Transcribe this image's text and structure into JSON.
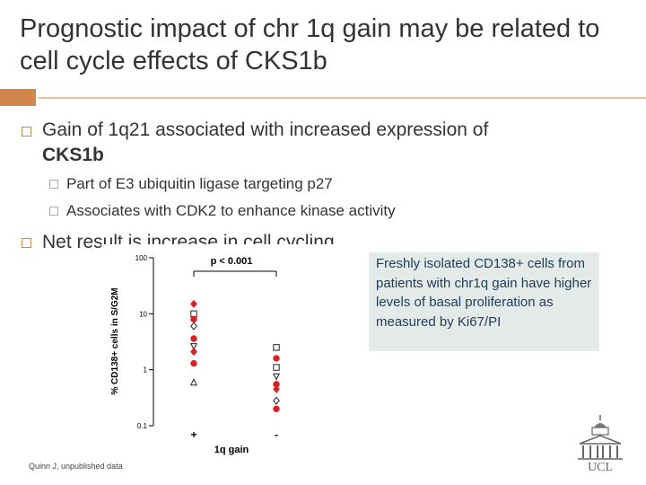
{
  "title": "Prognostic impact of chr 1q gain may be related to cell cycle effects of CKS1b",
  "bullets": {
    "b1_text": "Gain of 1q21 associated with increased expression of",
    "b1_bold": "CKS1b",
    "sub1": "Part of E3 ubiquitin ligase targeting p27",
    "sub2": "Associates with CDK2 to enhance kinase activity",
    "b2": "Net result is increase in cell cycling"
  },
  "chart_data": {
    "type": "scatter",
    "title": "p < 0.001",
    "xlabel": "1q gain",
    "ylabel": "% CD138+ cells in S/G2M",
    "yscale": "log",
    "ylim": [
      0.1,
      100
    ],
    "yticks": [
      "100",
      "10",
      "1",
      "0.1"
    ],
    "categories": [
      "+",
      "-"
    ],
    "points": [
      {
        "x": "+",
        "y": 15,
        "marker": "filled-diamond",
        "color": "#e02020"
      },
      {
        "x": "+",
        "y": 10,
        "marker": "open-square",
        "color": "#222222"
      },
      {
        "x": "+",
        "y": 8,
        "marker": "filled-circle",
        "color": "#e02020"
      },
      {
        "x": "+",
        "y": 6,
        "marker": "open-diamond",
        "color": "#222222"
      },
      {
        "x": "+",
        "y": 3.6,
        "marker": "filled-circle",
        "color": "#e02020"
      },
      {
        "x": "+",
        "y": 2.6,
        "marker": "open-down-triangle",
        "color": "#222222"
      },
      {
        "x": "+",
        "y": 2.1,
        "marker": "filled-diamond",
        "color": "#e02020"
      },
      {
        "x": "+",
        "y": 1.3,
        "marker": "filled-circle",
        "color": "#e02020"
      },
      {
        "x": "+",
        "y": 0.6,
        "marker": "open-triangle",
        "color": "#222222"
      },
      {
        "x": "-",
        "y": 2.5,
        "marker": "open-square",
        "color": "#222222"
      },
      {
        "x": "-",
        "y": 1.6,
        "marker": "filled-circle",
        "color": "#e02020"
      },
      {
        "x": "-",
        "y": 1.1,
        "marker": "open-square",
        "color": "#222222"
      },
      {
        "x": "-",
        "y": 0.75,
        "marker": "open-down-triangle",
        "color": "#222222"
      },
      {
        "x": "-",
        "y": 0.55,
        "marker": "filled-circle",
        "color": "#e02020"
      },
      {
        "x": "-",
        "y": 0.45,
        "marker": "filled-diamond",
        "color": "#e02020"
      },
      {
        "x": "-",
        "y": 0.28,
        "marker": "open-diamond",
        "color": "#222222"
      },
      {
        "x": "-",
        "y": 0.2,
        "marker": "filled-circle",
        "color": "#e02020"
      }
    ]
  },
  "callout": "Freshly isolated CD138+ cells from patients with chr1q gain have higher levels of basal proliferation as measured by Ki67/PI",
  "credit": "Quinn J, unpublished data",
  "logo": {
    "text": "UCL",
    "icon": "ucl-portico-icon"
  },
  "colors": {
    "accent": "#d2864a",
    "callout_bg": "#e3eae7",
    "callout_text": "#1f3b5a"
  }
}
